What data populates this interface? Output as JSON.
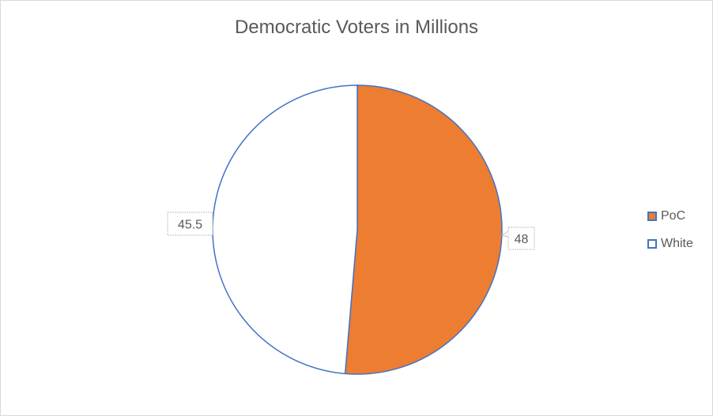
{
  "chart_data": {
    "type": "pie",
    "title": "Democratic Voters in Millions",
    "categories": [
      "PoC",
      "White"
    ],
    "values": [
      48,
      45.5
    ],
    "data_labels": [
      "48",
      "45.5"
    ],
    "colors": [
      "#ED7D31",
      "#FFFFFF"
    ],
    "edge_color": "#4472C4",
    "start_angle": "12 o'clock, clockwise",
    "legend": {
      "placement": "right",
      "entries": [
        "PoC",
        "White"
      ]
    }
  }
}
